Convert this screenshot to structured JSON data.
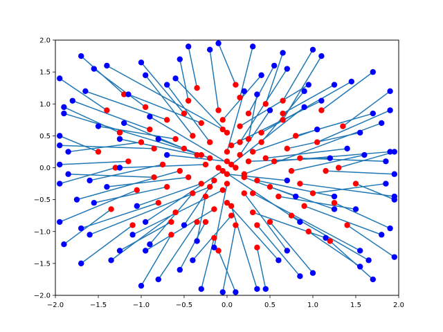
{
  "chart_data": {
    "type": "scatter",
    "title": "",
    "xlabel": "",
    "ylabel": "",
    "xlim": [
      -2,
      2
    ],
    "ylim": [
      -2,
      2
    ],
    "grid": false,
    "legend": "none",
    "x_ticks": [
      -2.0,
      -1.5,
      -1.0,
      -0.5,
      0.0,
      0.5,
      1.0,
      1.5,
      2.0
    ],
    "y_ticks": [
      -2.0,
      -1.5,
      -1.0,
      -0.5,
      0.0,
      0.5,
      1.0,
      1.5,
      2.0
    ],
    "x_tick_labels": [
      "−2.0",
      "−1.5",
      "−1.0",
      "−0.5",
      "0.0",
      "0.5",
      "1.0",
      "1.5",
      "2.0"
    ],
    "y_tick_labels": [
      "−2.0",
      "−1.5",
      "−1.0",
      "−0.5",
      "0.0",
      "0.5",
      "1.0",
      "1.5",
      "2.0"
    ],
    "line_color": "#1f77b4",
    "segments_note_color_start": "#ff0000",
    "segments_note_color_end": "#0000ff",
    "series": [
      {
        "color_start": "#ff0000",
        "color_end": "#0000ff",
        "segments": [
          [
            -0.05,
            0.6,
            -1.4,
            1.6
          ],
          [
            0.15,
            0.4,
            0.7,
            1.55
          ],
          [
            -0.3,
            0.2,
            -1.9,
            0.85
          ],
          [
            0.2,
            -0.1,
            1.8,
            0.7
          ],
          [
            -0.2,
            -0.3,
            -1.6,
            -1.05
          ],
          [
            0.3,
            -0.4,
            1.55,
            -1.3
          ],
          [
            0.05,
            -0.6,
            0.35,
            -1.9
          ],
          [
            -0.4,
            0.5,
            -0.95,
            1.45
          ],
          [
            0.4,
            0.55,
            1.45,
            1.35
          ],
          [
            -0.55,
            -0.05,
            -1.75,
            -0.5
          ],
          [
            0.55,
            0.1,
            1.9,
            0.25
          ],
          [
            -0.1,
            0.9,
            -0.2,
            1.85
          ],
          [
            0.1,
            -0.9,
            -0.05,
            -1.95
          ],
          [
            -0.7,
            0.75,
            -1.65,
            1.2
          ],
          [
            0.75,
            -0.75,
            1.65,
            -1.45
          ],
          [
            -0.6,
            -0.7,
            -1.35,
            -1.45
          ],
          [
            0.65,
            0.75,
            1.1,
            1.75
          ],
          [
            -0.25,
            0.05,
            -1.25,
            0.0
          ],
          [
            0.25,
            0.1,
            1.2,
            0.15
          ],
          [
            0.0,
            0.25,
            0.2,
            1.2
          ],
          [
            0.0,
            -0.25,
            -0.15,
            -1.25
          ],
          [
            -0.85,
            0.3,
            -1.95,
            0.35
          ],
          [
            0.85,
            -0.25,
            1.95,
            -0.45
          ],
          [
            -0.35,
            -0.85,
            -0.8,
            -1.75
          ],
          [
            0.35,
            -0.9,
            0.85,
            -1.7
          ],
          [
            -0.45,
            1.05,
            -0.55,
            1.7
          ],
          [
            0.45,
            1.0,
            0.65,
            1.8
          ],
          [
            -1.05,
            -0.35,
            -1.95,
            -0.85
          ],
          [
            1.05,
            0.4,
            1.9,
            0.9
          ],
          [
            -0.95,
            0.95,
            -1.55,
            1.55
          ],
          [
            0.95,
            -1.0,
            1.55,
            -1.55
          ],
          [
            -0.15,
            -1.1,
            -0.3,
            -1.9
          ],
          [
            0.15,
            1.1,
            0.3,
            1.9
          ],
          [
            -1.15,
            0.1,
            -1.95,
            0.05
          ],
          [
            1.15,
            -0.05,
            1.95,
            -0.1
          ],
          [
            -0.8,
            -0.55,
            -1.7,
            -0.95
          ],
          [
            0.8,
            0.5,
            1.7,
            0.85
          ],
          [
            -0.5,
            0.3,
            -1.2,
            0.7
          ],
          [
            0.5,
            -0.3,
            1.25,
            -0.65
          ],
          [
            0.05,
            0.05,
            0.9,
            0.95
          ],
          [
            -0.05,
            -0.05,
            -0.95,
            -0.85
          ],
          [
            0.1,
            0.0,
            -0.9,
            0.8
          ],
          [
            -0.1,
            0.0,
            0.85,
            -0.85
          ],
          [
            -0.3,
            0.7,
            -1.15,
            1.15
          ],
          [
            0.3,
            -0.7,
            1.15,
            -1.1
          ],
          [
            -1.25,
            0.55,
            -1.9,
            0.95
          ],
          [
            1.25,
            -0.55,
            1.9,
            -0.95
          ],
          [
            -0.65,
            -1.05,
            -1.0,
            -1.85
          ],
          [
            0.65,
            1.05,
            1.0,
            1.85
          ],
          [
            -0.2,
            0.4,
            -0.7,
            1.3
          ],
          [
            0.2,
            -0.4,
            0.7,
            -1.3
          ],
          [
            -1.35,
            -0.65,
            -1.9,
            -1.2
          ],
          [
            1.35,
            0.65,
            1.9,
            1.2
          ],
          [
            0.0,
            0.55,
            -0.6,
            1.4
          ],
          [
            0.0,
            -0.55,
            0.6,
            -1.45
          ],
          [
            -0.45,
            -0.15,
            -1.4,
            -0.3
          ],
          [
            0.45,
            0.15,
            1.4,
            0.3
          ],
          [
            -0.9,
            0.6,
            -1.8,
            1.05
          ],
          [
            0.9,
            -0.6,
            1.8,
            -1.05
          ],
          [
            -0.15,
            -0.65,
            -0.95,
            -1.3
          ],
          [
            0.15,
            0.65,
            0.95,
            1.3
          ],
          [
            -1.5,
            0.25,
            -1.95,
            0.5
          ],
          [
            1.5,
            -0.25,
            1.95,
            -0.5
          ],
          [
            -0.75,
            0.05,
            -1.6,
            -0.2
          ],
          [
            0.75,
            -0.05,
            1.6,
            0.2
          ],
          [
            -0.35,
            1.25,
            -0.45,
            1.9
          ],
          [
            0.35,
            -1.25,
            0.45,
            -1.9
          ],
          [
            -1.1,
            -0.9,
            -1.7,
            -1.5
          ],
          [
            1.1,
            0.9,
            1.7,
            1.5
          ],
          [
            0.25,
            0.85,
            0.55,
            1.6
          ],
          [
            -0.25,
            -0.85,
            -0.55,
            -1.6
          ],
          [
            -0.6,
            0.45,
            -1.5,
            0.65
          ],
          [
            0.6,
            -0.45,
            1.5,
            -0.65
          ],
          [
            0.05,
            0.35,
            1.1,
            1.05
          ],
          [
            -0.05,
            -0.35,
            -1.1,
            -1.05
          ],
          [
            -1.0,
            0.4,
            -1.85,
            0.25
          ],
          [
            1.0,
            -0.4,
            1.85,
            -0.25
          ],
          [
            -0.4,
            -0.4,
            -0.9,
            -1.2
          ],
          [
            0.4,
            0.4,
            0.9,
            1.2
          ],
          [
            0.1,
            1.3,
            -0.1,
            1.95
          ],
          [
            -0.1,
            -1.3,
            0.1,
            -1.95
          ],
          [
            -1.3,
            0.0,
            -1.95,
            -0.25
          ],
          [
            1.3,
            0.0,
            1.95,
            0.25
          ],
          [
            -0.2,
            0.15,
            -0.8,
            0.45
          ],
          [
            0.2,
            -0.15,
            0.8,
            -0.45
          ],
          [
            -0.7,
            -0.3,
            -1.55,
            -0.55
          ],
          [
            0.7,
            0.3,
            1.55,
            0.55
          ],
          [
            0.3,
            0.25,
            1.05,
            0.6
          ],
          [
            -0.3,
            -0.25,
            -1.05,
            -0.6
          ],
          [
            -0.05,
            0.75,
            0.4,
            1.45
          ],
          [
            0.05,
            -0.75,
            -0.4,
            -1.45
          ],
          [
            -1.2,
            1.15,
            -1.7,
            1.75
          ],
          [
            1.2,
            -1.15,
            1.7,
            -1.75
          ],
          [
            -0.5,
            0.85,
            -1.0,
            1.65
          ],
          [
            0.5,
            -0.85,
            1.0,
            -1.65
          ],
          [
            -0.85,
            -0.15,
            -1.85,
            -0.1
          ],
          [
            0.85,
            0.15,
            1.85,
            0.1
          ],
          [
            0.0,
            0.1,
            -0.7,
            0.2
          ],
          [
            0.0,
            -0.1,
            0.7,
            -0.2
          ],
          [
            -0.25,
            -0.45,
            -0.35,
            -1.15
          ],
          [
            0.25,
            0.45,
            0.35,
            1.15
          ],
          [
            -1.4,
            0.9,
            -1.95,
            1.4
          ],
          [
            1.4,
            -0.9,
            1.95,
            -1.4
          ],
          [
            0.35,
            -0.2,
            1.25,
            -0.45
          ],
          [
            -0.35,
            0.2,
            -1.25,
            0.45
          ],
          [
            -0.65,
            -0.85,
            -1.25,
            -1.3
          ],
          [
            0.65,
            0.85,
            1.25,
            1.3
          ],
          [
            0.15,
            0.2,
            0.5,
            0.9
          ],
          [
            -0.15,
            -0.2,
            -0.5,
            -0.9
          ]
        ]
      }
    ]
  }
}
